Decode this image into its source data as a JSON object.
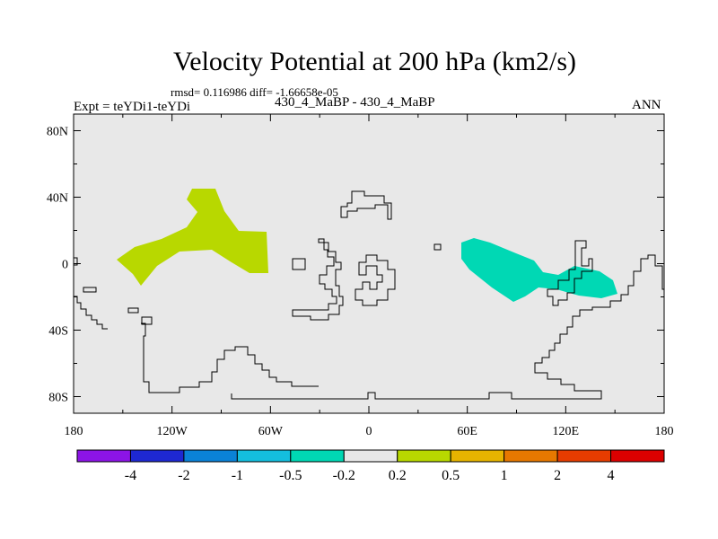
{
  "title": "Velocity Potential at 200 hPa (km2/s)",
  "stats_line": "rmsd= 0.116986 diff= -1.66658e-05",
  "left_label": "Expt = teYDi1-teYDi",
  "center_label": "430_4_MaBP - 430_4_MaBP",
  "right_label": "ANN",
  "map": {
    "projection": "cylindrical equidistant",
    "lon_range": [
      -180,
      180
    ],
    "lat_range": [
      -90,
      90
    ],
    "background_color": "#e8e8e8",
    "coastline_color": "#000000",
    "lon_ticks": [
      {
        "value": -180,
        "label": "180"
      },
      {
        "value": -120,
        "label": "120W"
      },
      {
        "value": -60,
        "label": "60W"
      },
      {
        "value": 0,
        "label": "0"
      },
      {
        "value": 60,
        "label": "60E"
      },
      {
        "value": 120,
        "label": "120E"
      },
      {
        "value": 180,
        "label": "180"
      }
    ],
    "lat_ticks": [
      {
        "value": 80,
        "label": "80N"
      },
      {
        "value": 40,
        "label": "40N"
      },
      {
        "value": 0,
        "label": "0"
      },
      {
        "value": -40,
        "label": "40S"
      },
      {
        "value": -80,
        "label": "80S"
      }
    ]
  },
  "chart_data": {
    "type": "heatmap",
    "title": "Velocity Potential at 200 hPa (km2/s)",
    "field": "velocity potential difference (teYDi1 - teYDi)",
    "units": "km2/s",
    "rmsd": 0.116986,
    "mean_diff": -1.66658e-05,
    "regions": [
      {
        "name": "positive anomaly, eastern Pacific",
        "lon_range": [
          -153,
          -62
        ],
        "lat_range": [
          -12,
          47
        ],
        "level": "0.2 to 0.5",
        "color": "#b8d800"
      },
      {
        "name": "negative anomaly, Indian Ocean to Maritime Continent",
        "lon_range": [
          55,
          150
        ],
        "lat_range": [
          -22,
          16
        ],
        "level": "-0.5 to -0.2",
        "color": "#00d8b4"
      }
    ],
    "colorbar": {
      "colors": [
        "#8c14e6",
        "#1e28d2",
        "#0a82d7",
        "#14bede",
        "#00d8b4",
        "#e8e8e8",
        "#b8d800",
        "#e6b400",
        "#e67800",
        "#e63c00",
        "#dc0000"
      ],
      "levels": [
        "-4",
        "-2",
        "-1",
        "-0.5",
        "-0.2",
        "0.2",
        "0.5",
        "1",
        "2",
        "4"
      ]
    }
  }
}
